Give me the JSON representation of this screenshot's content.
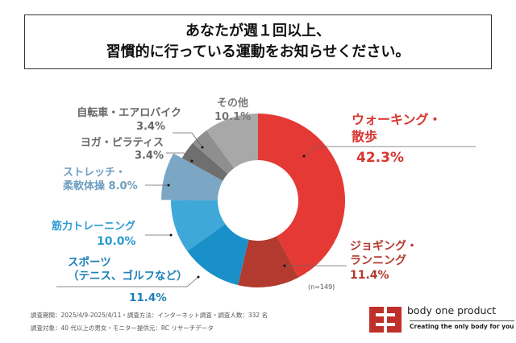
{
  "title": {
    "line1": "あなたが週１回以上、",
    "line2": "習慣的に行っている運動をお知らせください。"
  },
  "chart_data": {
    "type": "pie",
    "subtype": "donut",
    "categories": [
      "ウォーキング・散歩",
      "ジョギング・ランニング",
      "スポーツ（テニス、ゴルフなど）",
      "筋力トレーニング",
      "ストレッチ・柔軟体操",
      "ヨガ・ピラティス",
      "自転車・エアロバイク",
      "その他"
    ],
    "values": [
      42.3,
      11.4,
      11.4,
      10.0,
      8.0,
      3.4,
      3.4,
      10.1
    ],
    "value_labels": [
      "42.3%",
      "11.4%",
      "11.4%",
      "10.0%",
      "8.0%",
      "3.4%",
      "3.4%",
      "10.1%"
    ],
    "colors": [
      "#e53935",
      "#b23a2f",
      "#1a90c8",
      "#3ea8d8",
      "#7ba7c4",
      "#6f6f6f",
      "#8f8f8f",
      "#a8a8a8"
    ],
    "start": "12 o'clock, clockwise",
    "note": "(n=149)"
  },
  "labels": {
    "walking": {
      "line1": "ウォーキング・",
      "line2": "散歩",
      "value": "42.3%"
    },
    "jogging": {
      "line1": "ジョギング・",
      "line2": "ランニング",
      "value": "11.4%"
    },
    "sports": {
      "line1": "スポーツ",
      "line2": "（テニス、ゴルフなど）",
      "value": "11.4%"
    },
    "strength": {
      "line1": "筋力トレーニング",
      "value": "10.0%"
    },
    "stretch": {
      "line1": "ストレッチ・",
      "line2": "柔軟体操",
      "value": "8.0%"
    },
    "yoga": {
      "line1": "ヨガ・ピラティス",
      "value": "3.4%"
    },
    "bike": {
      "line1": "自転車・エアロバイク",
      "value": "3.4%"
    },
    "other": {
      "line1": "その他",
      "value": "10.1%"
    }
  },
  "footer": {
    "line1": "調査期間：2025/4/9-2025/4/11・調査方法：インターネット調査・調査人数：332 名",
    "line2": "調査対象：40 代以上の男女・モニター提供元：RC リサーチデータ"
  },
  "brand": {
    "name": "body one product",
    "tagline": "Creating the only body for you",
    "logo_color": "#c0302a"
  }
}
